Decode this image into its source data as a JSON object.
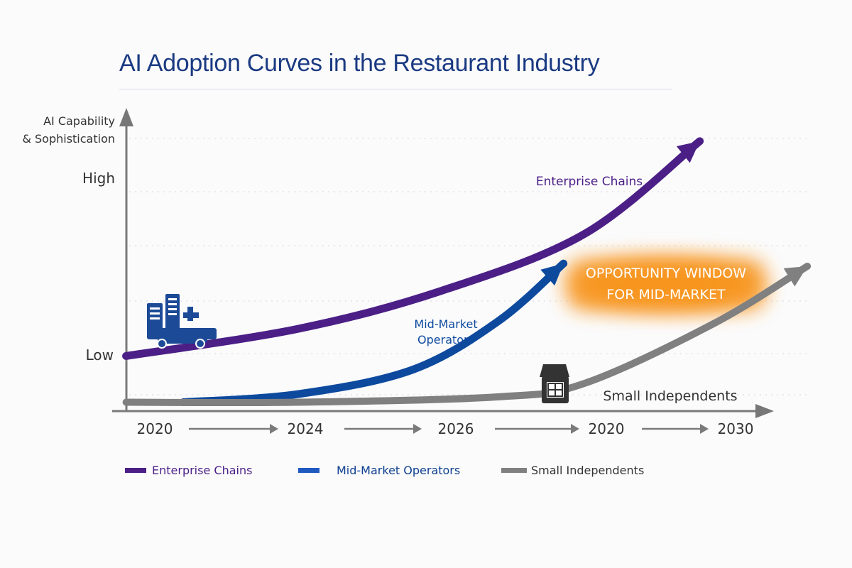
{
  "title": "AI Adoption Curves in the Restaurant Industry",
  "chart_data": {
    "type": "line",
    "title": "AI Adoption Curves in the Restaurant Industry",
    "ylabel_line1": "AI Capability",
    "ylabel_line2": "& Sophistication",
    "y_tick_labels": {
      "high": "High",
      "low": "Low"
    },
    "x_tick_labels": [
      "2020",
      "2024",
      "2026",
      "2020",
      "2030"
    ],
    "ylim": [
      0,
      100
    ],
    "grid": "dotted horizontal",
    "legend_position": "bottom",
    "series": [
      {
        "name": "Enterprise Chains",
        "color": "#4b1f86",
        "curve_label": "Enterprise Chains",
        "x": [
          -0.2,
          1,
          2,
          3,
          3.8
        ],
        "y": [
          20,
          30,
          44,
          65,
          99
        ]
      },
      {
        "name": "Mid-Market Operators",
        "color": "#0d4a9e",
        "curve_label_line1": "Mid-Market",
        "curve_label_line2": "Operators",
        "x": [
          0.2,
          1,
          1.8,
          2.4,
          2.85
        ],
        "y": [
          3,
          6,
          15,
          33,
          54
        ]
      },
      {
        "name": "Small Independents",
        "color": "#808080",
        "curve_label": "Small Independents",
        "x": [
          -0.2,
          1,
          2.4,
          3,
          3.9,
          4.55
        ],
        "y": [
          3,
          3,
          5,
          10,
          32,
          53
        ]
      }
    ],
    "annotation": {
      "line1": "OPPORTUNITY WINDOW",
      "line2": "FOR MID-MARKET",
      "color": "#f7941d"
    },
    "icons": [
      "enterprise-buildings-truck-icon",
      "storefront-icon"
    ]
  }
}
